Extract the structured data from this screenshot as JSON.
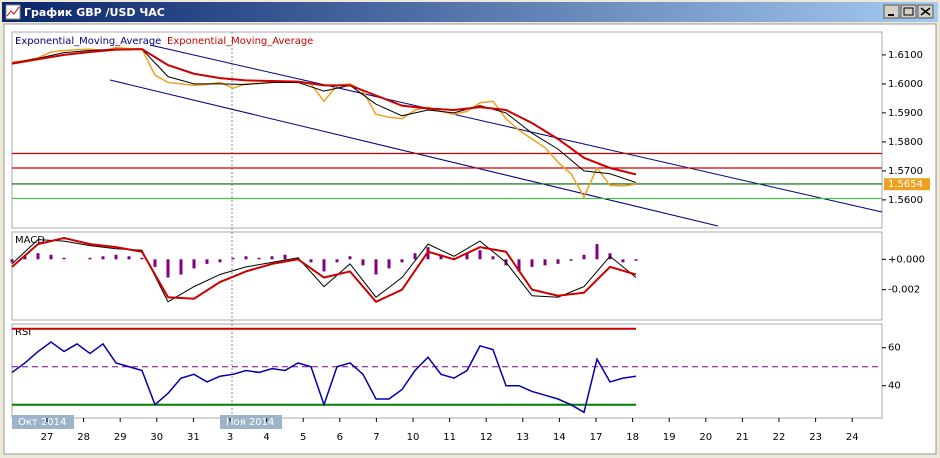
{
  "window": {
    "title": "График GBP /USD ЧАС"
  },
  "price_panel": {
    "labels": [
      {
        "text": "Exponential_Moving_Average",
        "color": "#000080"
      },
      {
        "text": "Exponential_Moving_Average",
        "color": "#cc0000"
      }
    ],
    "ylim": [
      1.5503,
      1.6179
    ],
    "yticks": [
      {
        "value": 1.61,
        "label": "1.6100"
      },
      {
        "value": 1.6,
        "label": "1.6000"
      },
      {
        "value": 1.59,
        "label": "1.5900"
      },
      {
        "value": 1.58,
        "label": "1.5800"
      },
      {
        "value": 1.57,
        "label": "1.5700"
      },
      {
        "value": 1.56,
        "label": "1.5600"
      }
    ],
    "current_price": {
      "value": 1.5654,
      "label": "1.5654",
      "color": "#f0a020"
    },
    "close": {
      "color": "#f0a020",
      "values": [
        1.6075,
        1.608,
        1.609,
        1.611,
        1.6115,
        1.6118,
        1.612,
        1.6115,
        1.6125,
        1.6122,
        1.612,
        1.603,
        1.6005,
        1.6,
        1.5995,
        1.5998,
        1.6005,
        1.5985,
        1.6,
        1.6002,
        1.6005,
        1.6008,
        1.6005,
        1.6,
        1.594,
        1.5995,
        1.6,
        1.5975,
        1.5895,
        1.5885,
        1.588,
        1.591,
        1.592,
        1.5905,
        1.5895,
        1.5905,
        1.5935,
        1.594,
        1.588,
        1.584,
        1.581,
        1.578,
        1.573,
        1.569,
        1.561,
        1.571,
        1.565,
        1.5648,
        1.5654
      ]
    },
    "ema": [
      {
        "color": "#000000",
        "values": [
          1.6072,
          1.6088,
          1.6108,
          1.6115,
          1.612,
          1.612,
          1.6025,
          1.6,
          1.6,
          1.5998,
          1.6005,
          1.6005,
          1.5975,
          1.5995,
          1.593,
          1.589,
          1.591,
          1.59,
          1.5925,
          1.59,
          1.583,
          1.5775,
          1.57,
          1.569,
          1.566
        ]
      },
      {
        "color": "#cc0000",
        "values": [
          1.607,
          1.6085,
          1.61,
          1.611,
          1.6118,
          1.612,
          1.6065,
          1.6035,
          1.602,
          1.6012,
          1.601,
          1.6008,
          1.5995,
          1.5995,
          1.596,
          1.5925,
          1.5915,
          1.591,
          1.592,
          1.591,
          1.5865,
          1.581,
          1.5745,
          1.571,
          1.5688
        ]
      }
    ],
    "levels": [
      {
        "value": 1.576,
        "color": "#cc0000"
      },
      {
        "value": 1.571,
        "color": "#cc0000"
      },
      {
        "value": 1.5655,
        "color": "#006400"
      },
      {
        "value": 1.5605,
        "color": "#33cc33"
      }
    ]
  },
  "macd_panel": {
    "label": "MACD",
    "ylim": [
      -0.004,
      0.0018
    ],
    "yticks": [
      {
        "value": 0,
        "label": "+0.000"
      },
      {
        "value": -0.002,
        "label": "-0.002"
      }
    ],
    "histogram": {
      "color": "#800080",
      "values": [
        -0.0002,
        0.0002,
        0.0004,
        0.0003,
        0.0001,
        0.0,
        0.0001,
        0.0002,
        0.0003,
        0.0002,
        0.0001,
        -0.0005,
        -0.0012,
        -0.001,
        -0.0006,
        -0.0003,
        -0.0002,
        0.0001,
        0.0002,
        0.0001,
        0.0002,
        0.0003,
        0.0001,
        -0.0002,
        -0.0008,
        -0.0002,
        0.0002,
        -0.0004,
        -0.001,
        -0.0006,
        -0.0002,
        0.0004,
        0.0008,
        0.0003,
        0.0001,
        0.0004,
        0.0006,
        0.0002,
        -0.0004,
        -0.0008,
        -0.0005,
        -0.0004,
        -0.0003,
        -0.0001,
        0.0003,
        0.001,
        0.0004,
        -0.0002,
        -0.0001
      ]
    },
    "lines": [
      {
        "color": "#000000",
        "values": [
          -0.0003,
          0.0013,
          0.0012,
          0.0009,
          0.0007,
          0.0006,
          -0.0028,
          -0.0018,
          -0.001,
          -0.0005,
          -0.0002,
          0.0001,
          -0.0018,
          -0.0003,
          -0.0025,
          -0.0012,
          0.001,
          0.0002,
          0.0012,
          -0.0002,
          -0.0024,
          -0.0025,
          -0.0018,
          0.0002,
          -0.0012
        ]
      },
      {
        "color": "#cc0000",
        "values": [
          -0.0005,
          0.001,
          0.0014,
          0.001,
          0.0008,
          0.0005,
          -0.0025,
          -0.0026,
          -0.0015,
          -0.0008,
          -0.0003,
          0.0,
          -0.0012,
          -0.0008,
          -0.0028,
          -0.002,
          0.0005,
          0.0,
          0.0008,
          0.0005,
          -0.002,
          -0.0024,
          -0.0022,
          -0.0005,
          -0.001
        ]
      }
    ]
  },
  "rsi_panel": {
    "label": "RSI",
    "ylim": [
      23,
      72.5
    ],
    "yticks": [
      60,
      40
    ],
    "line": {
      "color": "#0000aa",
      "values": [
        47,
        52,
        58,
        63,
        58,
        62,
        57,
        62,
        52,
        50,
        48,
        30,
        36,
        44,
        46,
        42,
        45,
        46,
        48,
        47,
        49,
        48,
        52,
        50,
        30,
        50,
        52,
        46,
        33,
        33,
        38,
        48,
        55,
        46,
        44,
        48,
        61,
        59,
        40,
        40,
        37,
        35,
        33,
        30,
        26,
        54,
        42,
        44,
        45
      ]
    },
    "levels": [
      {
        "value": 70,
        "color": "#cc0000",
        "dash": false
      },
      {
        "value": 50,
        "color": "#800080",
        "dash": true
      },
      {
        "value": 30,
        "color": "#008000",
        "dash": false
      }
    ]
  },
  "x_axis": {
    "labels": [
      "27",
      "28",
      "29",
      "30",
      "31",
      "3",
      "4",
      "5",
      "6",
      "7",
      "10",
      "11",
      "12",
      "13",
      "14",
      "17",
      "18",
      "19",
      "20",
      "21",
      "22",
      "23",
      "24"
    ],
    "months": [
      "Окт 2014",
      "Ноя 2014"
    ]
  }
}
